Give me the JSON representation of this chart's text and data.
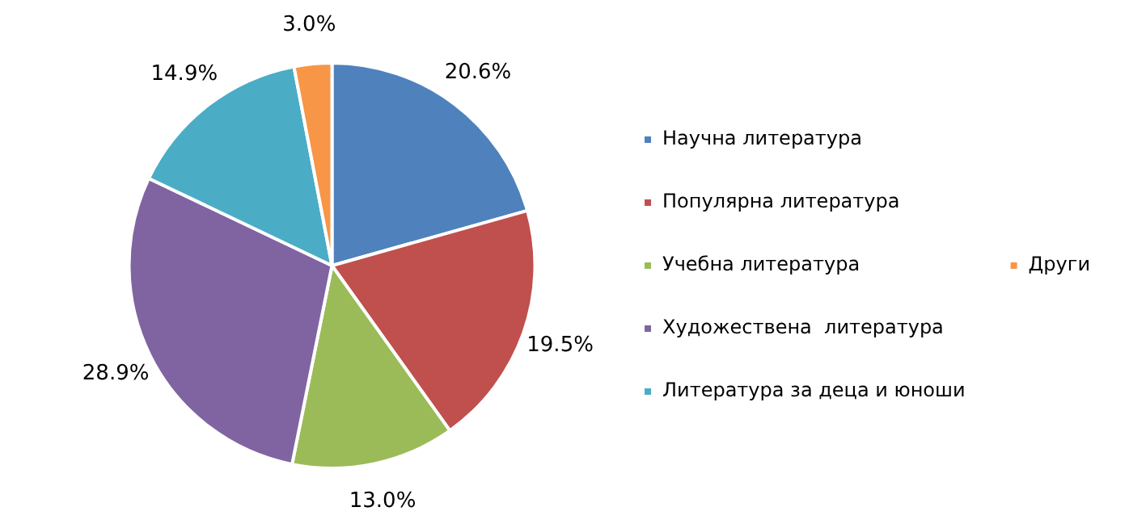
{
  "chart_data": {
    "type": "pie",
    "categories": [
      "Научна литература",
      "Популярна литература",
      "Учебна литература",
      "Художествена  литература",
      "Литература за деца и юноши",
      "Други"
    ],
    "values": [
      20.6,
      19.5,
      13.0,
      28.9,
      14.9,
      3.0
    ],
    "value_labels": [
      "20.6%",
      "19.5%",
      "13.0%",
      "28.9%",
      "14.9%",
      "3.0%"
    ],
    "colors": [
      "#4f81bd",
      "#c0504d",
      "#9bbb59",
      "#8064a2",
      "#4bacc6",
      "#f79646"
    ],
    "legend": "right"
  }
}
